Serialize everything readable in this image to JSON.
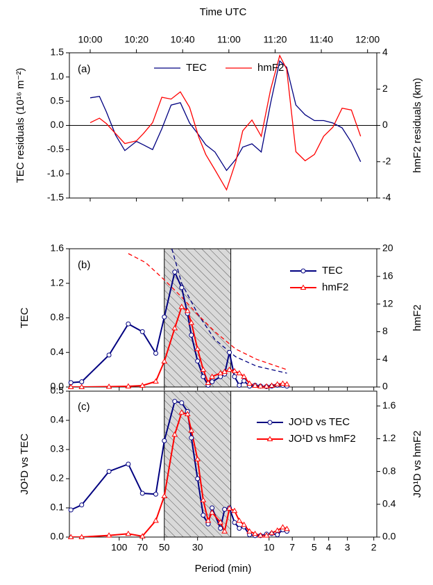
{
  "chart_data": [
    {
      "type": "line",
      "panel_label": "(a)",
      "title": "Time UTC",
      "y_label": "TEC residuals (10¹⁶ m⁻²)",
      "y2_label": "hmF2 residuals (km)",
      "x": [
        "10:00",
        "10:04",
        "10:07",
        "10:11",
        "10:15",
        "10:20",
        "10:23",
        "10:27",
        "10:31",
        "10:35",
        "10:39",
        "10:43",
        "10:47",
        "10:50",
        "10:54",
        "10:59",
        "11:03",
        "11:06",
        "11:10",
        "11:14",
        "11:18",
        "11:22",
        "11:25",
        "11:29",
        "11:33",
        "11:37",
        "11:41",
        "11:45",
        "11:49",
        "11:53",
        "11:57"
      ],
      "xlim": [
        "09:51",
        "12:04"
      ],
      "xticks": [
        "10:00",
        "10:20",
        "10:40",
        "11:00",
        "11:20",
        "11:40",
        "12:00"
      ],
      "ylim": [
        -1.5,
        1.5
      ],
      "yticks": [
        {
          "value": 1.5,
          "label": "1.5"
        },
        {
          "value": 1,
          "label": "1.0"
        },
        0.5,
        {
          "value": 0,
          "label": "0.0"
        },
        -0.5,
        {
          "value": -1,
          "label": "-1.0"
        },
        -1.5
      ],
      "y2lim": [
        -4,
        4
      ],
      "y2ticks": [
        4,
        2,
        0,
        -2,
        -4
      ],
      "hline": 0,
      "legend": "top-center",
      "series": [
        {
          "name": "TEC",
          "color": "#000080",
          "axis": "y",
          "values": [
            0.57,
            0.6,
            0.28,
            -0.2,
            -0.52,
            -0.33,
            -0.4,
            -0.5,
            -0.07,
            0.42,
            0.47,
            0.05,
            -0.2,
            -0.4,
            -0.55,
            -0.93,
            -0.7,
            -0.45,
            -0.38,
            -0.55,
            0.45,
            1.33,
            1.2,
            0.42,
            0.22,
            0.1,
            0.1,
            0.05,
            -0.05,
            -0.35,
            -0.75
          ]
        },
        {
          "name": "hmF2",
          "color": "#ff0000",
          "axis": "y2",
          "values": [
            0.15,
            0.4,
            0.1,
            -0.45,
            -1.0,
            -0.85,
            -0.45,
            0.15,
            1.55,
            1.45,
            1.85,
            1.0,
            -0.65,
            -1.6,
            -2.45,
            -3.55,
            -2.0,
            -0.3,
            0.3,
            -0.6,
            1.95,
            3.85,
            3.1,
            -1.45,
            -1.95,
            -1.6,
            -0.6,
            -0.1,
            0.95,
            0.85,
            -0.6
          ]
        }
      ]
    },
    {
      "type": "line",
      "panel_label": "(b)",
      "y_label": "TEC",
      "y2_label": "hmF2",
      "xscale": "log",
      "xlim": [
        215,
        1.91
      ],
      "x": [
        210,
        178,
        117,
        87,
        70,
        57,
        50,
        42.6,
        38.3,
        35,
        33,
        30,
        27.5,
        25.5,
        24,
        21.1,
        19.8,
        18.4,
        17,
        15.8,
        14.7,
        13.5,
        12.4,
        11.4,
        10.4,
        9.6,
        8.8,
        8.1,
        7.6
      ],
      "ylim": [
        0,
        1.6
      ],
      "yticks": [
        {
          "value": 0,
          "label": "0.0"
        },
        0.4,
        0.8,
        1.2,
        1.6
      ],
      "y2lim": [
        0,
        20
      ],
      "y2ticks": [
        0,
        4,
        8,
        12,
        16,
        20
      ],
      "highlight": [
        50,
        18
      ],
      "legend": "top-right",
      "series": [
        {
          "name": "TEC",
          "color": "#000080",
          "axis": "y",
          "marker": "circle",
          "values": [
            0.05,
            0.06,
            0.37,
            0.73,
            0.64,
            0.39,
            0.81,
            1.33,
            1.15,
            0.85,
            0.6,
            0.3,
            0.12,
            0.02,
            0.06,
            0.12,
            0.15,
            0.4,
            0.12,
            0.02,
            0.07,
            0.01,
            0.02,
            0.01,
            0.005,
            0.01,
            0.02,
            0.02,
            0.01
          ]
        },
        {
          "name": "hmF2",
          "color": "#ff0000",
          "axis": "y2",
          "marker": "triangle",
          "values": [
            0,
            0,
            0.05,
            0.1,
            0.2,
            0.8,
            3.7,
            8.5,
            11.6,
            11.0,
            9.3,
            5.5,
            2.5,
            0.6,
            1.5,
            2.0,
            2.2,
            2.5,
            2.3,
            2.0,
            1.5,
            0.5,
            0.2,
            0.1,
            0.1,
            0.2,
            0.4,
            0.5,
            0.4
          ]
        }
      ],
      "curves": [
        {
          "color": "#000080",
          "axis": "y",
          "x": [
            44.5,
            38.3,
            30,
            23,
            16.7,
            12.1,
            7.6
          ],
          "values": [
            1.6,
            1.2,
            0.85,
            0.55,
            0.35,
            0.24,
            0.16
          ]
        },
        {
          "color": "#ff0000",
          "axis": "y2",
          "x": [
            87,
            66.7,
            50,
            38.3,
            30,
            23,
            16.7,
            12.1,
            7.6
          ],
          "values": [
            19.3,
            18,
            15.5,
            13,
            10.5,
            8,
            5.5,
            4,
            2.5
          ]
        }
      ]
    },
    {
      "type": "line",
      "panel_label": "(c)",
      "x_label": "Period (min)",
      "y_label": "JO¹D vs TEC",
      "y2_label": "JO¹D vs hmF2",
      "xscale": "log",
      "xlim": [
        215,
        1.91
      ],
      "xticks": [
        100,
        70,
        50,
        30,
        10,
        7,
        5,
        4,
        3,
        2
      ],
      "x": [
        210,
        178,
        117,
        87,
        70,
        57,
        50,
        42.6,
        38.3,
        35,
        33,
        30,
        27.5,
        25.5,
        24,
        21.1,
        19.8,
        18.4,
        17,
        15.8,
        14.7,
        13.5,
        12.4,
        11.4,
        10.4,
        9.6,
        8.8,
        8.1,
        7.6
      ],
      "ylim": [
        0,
        0.5
      ],
      "yticks": [
        {
          "value": 0,
          "label": "0.0"
        },
        0.1,
        0.2,
        0.3,
        0.4,
        0.5
      ],
      "y2lim": [
        0,
        1.78
      ],
      "y2ticks": [
        {
          "value": 0,
          "label": "0.0"
        },
        0.4,
        0.8,
        1.2,
        1.6
      ],
      "highlight": [
        50,
        18
      ],
      "legend": "top-right",
      "series": [
        {
          "name": "JO¹D vs TEC",
          "color": "#000080",
          "axis": "y",
          "marker": "circle",
          "values": [
            0.093,
            0.11,
            0.225,
            0.25,
            0.15,
            0.147,
            0.33,
            0.465,
            0.46,
            0.43,
            0.34,
            0.2,
            0.075,
            0.045,
            0.1,
            0.03,
            0.095,
            0.1,
            0.05,
            0.03,
            0.035,
            0.008,
            0.005,
            0.005,
            0.01,
            0.012,
            0.008,
            0.025,
            0.02
          ]
        },
        {
          "name": "JO¹D vs hmF2",
          "color": "#ff0000",
          "axis": "y2",
          "marker": "triangle",
          "values": [
            0,
            0,
            0.02,
            0.04,
            0.01,
            0.2,
            0.5,
            1.25,
            1.52,
            1.5,
            1.3,
            0.95,
            0.45,
            0.2,
            0.3,
            0.18,
            0.07,
            0.35,
            0.32,
            0.2,
            0.15,
            0.07,
            0.04,
            0.02,
            0.02,
            0.05,
            0.08,
            0.12,
            0.1
          ]
        }
      ]
    }
  ]
}
